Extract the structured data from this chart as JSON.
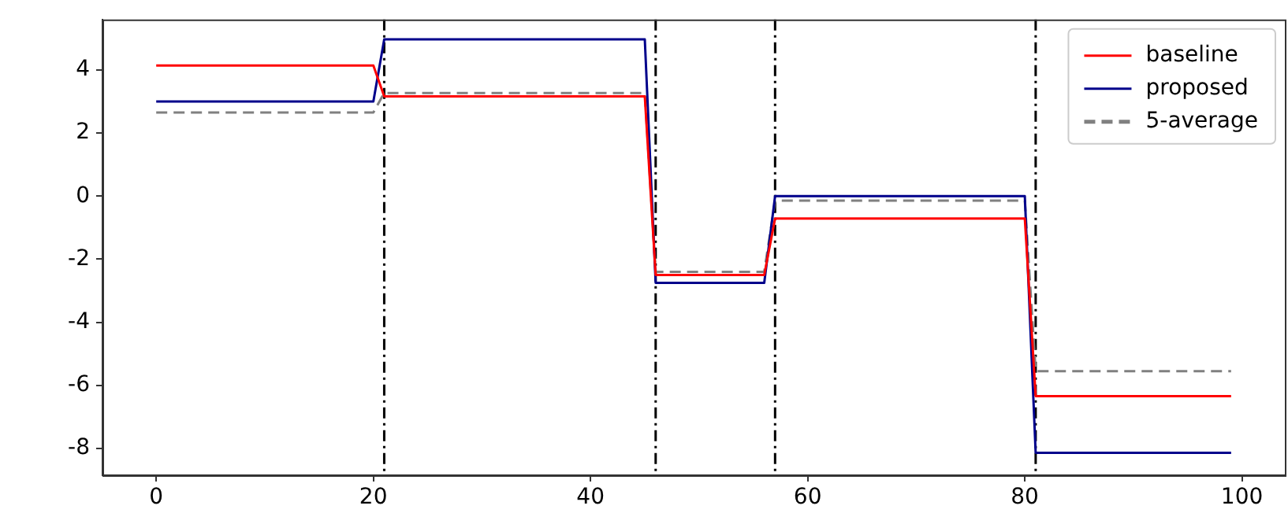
{
  "chart_data": {
    "type": "line",
    "x": [
      0,
      20,
      21,
      45,
      46,
      56,
      57,
      80,
      81,
      99
    ],
    "series": [
      {
        "name": "baseline",
        "color": "#ff0000",
        "line_style": "solid",
        "values": [
          4.14,
          4.14,
          3.16,
          3.16,
          -2.5,
          -2.5,
          -0.71,
          -0.71,
          -6.34,
          -6.34
        ]
      },
      {
        "name": "proposed",
        "color": "#00008b",
        "line_style": "solid",
        "values": [
          3.0,
          3.0,
          4.97,
          4.97,
          -2.75,
          -2.75,
          0.0,
          0.0,
          -8.14,
          -8.14
        ]
      },
      {
        "name": "5-average",
        "color": "#808080",
        "line_style": "dashed",
        "values": [
          2.65,
          2.65,
          3.27,
          3.27,
          -2.4,
          -2.4,
          -0.14,
          -0.14,
          -5.55,
          -5.55
        ]
      }
    ],
    "xlim": [
      -4.95,
      103.95
    ],
    "xticks": [
      0,
      20,
      40,
      60,
      80,
      100
    ],
    "ylim": [
      -8.85,
      5.6
    ],
    "yticks": [
      -8,
      -6,
      -4,
      -2,
      0,
      2,
      4
    ],
    "ref_lines": [
      {
        "axis": "x",
        "value": 21,
        "color": "#000000",
        "line_style": "dashdot"
      },
      {
        "axis": "x",
        "value": 46,
        "color": "#000000",
        "line_style": "dashdot"
      },
      {
        "axis": "x",
        "value": 57,
        "color": "#000000",
        "line_style": "dashdot"
      },
      {
        "axis": "x",
        "value": 81,
        "color": "#000000",
        "line_style": "dashdot"
      }
    ],
    "grid": false,
    "legend": "top right",
    "marker": "none"
  }
}
